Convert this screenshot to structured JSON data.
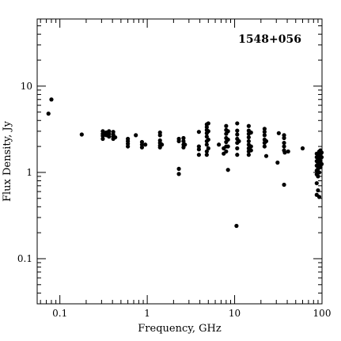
{
  "chart_data": {
    "type": "scatter",
    "title": "1548+056",
    "xlabel": "Frequency, GHz",
    "ylabel": "Flux Density, Jy",
    "xscale": "log",
    "yscale": "log",
    "xlim": [
      0.055,
      100
    ],
    "ylim": [
      0.03,
      60
    ],
    "x_ticks": [
      {
        "value": 0.1,
        "label": "0.1"
      },
      {
        "value": 1,
        "label": "1"
      },
      {
        "value": 10,
        "label": "10"
      },
      {
        "value": 100,
        "label": "100"
      }
    ],
    "y_ticks": [
      {
        "value": 0.1,
        "label": "0.1"
      },
      {
        "value": 1,
        "label": "1"
      },
      {
        "value": 10,
        "label": "10"
      }
    ],
    "grid": false,
    "marker_color": "#000000",
    "points": [
      {
        "x": 0.074,
        "y": 4.8
      },
      {
        "x": 0.08,
        "y": 7.0
      },
      {
        "x": 0.178,
        "y": 2.75
      },
      {
        "x": 0.31,
        "y": 2.45
      },
      {
        "x": 0.31,
        "y": 2.65
      },
      {
        "x": 0.31,
        "y": 2.8
      },
      {
        "x": 0.31,
        "y": 3.0
      },
      {
        "x": 0.34,
        "y": 2.7
      },
      {
        "x": 0.34,
        "y": 2.9
      },
      {
        "x": 0.365,
        "y": 2.6
      },
      {
        "x": 0.365,
        "y": 2.8
      },
      {
        "x": 0.365,
        "y": 3.0
      },
      {
        "x": 0.408,
        "y": 2.45
      },
      {
        "x": 0.408,
        "y": 2.6
      },
      {
        "x": 0.408,
        "y": 2.75
      },
      {
        "x": 0.408,
        "y": 2.95
      },
      {
        "x": 0.43,
        "y": 2.55
      },
      {
        "x": 0.6,
        "y": 2.0
      },
      {
        "x": 0.6,
        "y": 2.15
      },
      {
        "x": 0.6,
        "y": 2.3
      },
      {
        "x": 0.6,
        "y": 2.45
      },
      {
        "x": 0.74,
        "y": 2.7
      },
      {
        "x": 0.87,
        "y": 1.95
      },
      {
        "x": 0.87,
        "y": 2.1
      },
      {
        "x": 0.87,
        "y": 2.25
      },
      {
        "x": 0.95,
        "y": 2.1
      },
      {
        "x": 1.4,
        "y": 1.95
      },
      {
        "x": 1.4,
        "y": 2.05
      },
      {
        "x": 1.4,
        "y": 2.2
      },
      {
        "x": 1.4,
        "y": 2.35
      },
      {
        "x": 1.4,
        "y": 2.7
      },
      {
        "x": 1.4,
        "y": 2.9
      },
      {
        "x": 1.47,
        "y": 2.1
      },
      {
        "x": 2.3,
        "y": 0.96
      },
      {
        "x": 2.3,
        "y": 1.1
      },
      {
        "x": 2.3,
        "y": 2.3
      },
      {
        "x": 2.3,
        "y": 2.45
      },
      {
        "x": 2.6,
        "y": 1.95
      },
      {
        "x": 2.6,
        "y": 2.1
      },
      {
        "x": 2.6,
        "y": 2.3
      },
      {
        "x": 2.6,
        "y": 2.5
      },
      {
        "x": 2.7,
        "y": 2.1
      },
      {
        "x": 3.9,
        "y": 1.6
      },
      {
        "x": 3.9,
        "y": 1.85
      },
      {
        "x": 3.9,
        "y": 2.0
      },
      {
        "x": 3.9,
        "y": 2.95
      },
      {
        "x": 4.8,
        "y": 1.6
      },
      {
        "x": 4.8,
        "y": 1.75
      },
      {
        "x": 4.8,
        "y": 2.1
      },
      {
        "x": 4.8,
        "y": 2.3
      },
      {
        "x": 4.8,
        "y": 2.6
      },
      {
        "x": 4.8,
        "y": 2.85
      },
      {
        "x": 4.8,
        "y": 3.1
      },
      {
        "x": 4.8,
        "y": 3.35
      },
      {
        "x": 4.8,
        "y": 3.6
      },
      {
        "x": 5.0,
        "y": 1.9
      },
      {
        "x": 5.0,
        "y": 2.4
      },
      {
        "x": 5.0,
        "y": 3.0
      },
      {
        "x": 5.0,
        "y": 3.7
      },
      {
        "x": 6.6,
        "y": 2.1
      },
      {
        "x": 7.5,
        "y": 1.65
      },
      {
        "x": 7.5,
        "y": 1.9
      },
      {
        "x": 8.0,
        "y": 1.75
      },
      {
        "x": 8.0,
        "y": 2.0
      },
      {
        "x": 8.0,
        "y": 2.25
      },
      {
        "x": 8.0,
        "y": 2.5
      },
      {
        "x": 8.0,
        "y": 2.8
      },
      {
        "x": 8.0,
        "y": 3.1
      },
      {
        "x": 8.0,
        "y": 3.45
      },
      {
        "x": 8.4,
        "y": 1.07
      },
      {
        "x": 8.4,
        "y": 2.0
      },
      {
        "x": 8.4,
        "y": 2.4
      },
      {
        "x": 8.4,
        "y": 3.0
      },
      {
        "x": 10.5,
        "y": 0.24
      },
      {
        "x": 10.7,
        "y": 1.6
      },
      {
        "x": 10.7,
        "y": 1.9
      },
      {
        "x": 10.7,
        "y": 2.2
      },
      {
        "x": 10.7,
        "y": 2.45
      },
      {
        "x": 10.7,
        "y": 2.75
      },
      {
        "x": 10.7,
        "y": 3.05
      },
      {
        "x": 10.7,
        "y": 3.7
      },
      {
        "x": 11.2,
        "y": 2.3
      },
      {
        "x": 14.5,
        "y": 1.6
      },
      {
        "x": 14.5,
        "y": 1.75
      },
      {
        "x": 14.5,
        "y": 1.9
      },
      {
        "x": 14.5,
        "y": 2.1
      },
      {
        "x": 14.5,
        "y": 2.3
      },
      {
        "x": 14.5,
        "y": 2.55
      },
      {
        "x": 14.5,
        "y": 2.8
      },
      {
        "x": 14.5,
        "y": 3.05
      },
      {
        "x": 14.5,
        "y": 3.45
      },
      {
        "x": 15.4,
        "y": 1.8
      },
      {
        "x": 15.4,
        "y": 2.0
      },
      {
        "x": 15.4,
        "y": 2.9
      },
      {
        "x": 22,
        "y": 2.0
      },
      {
        "x": 22,
        "y": 2.2
      },
      {
        "x": 22,
        "y": 2.4
      },
      {
        "x": 22,
        "y": 2.7
      },
      {
        "x": 22,
        "y": 2.95
      },
      {
        "x": 22,
        "y": 3.2
      },
      {
        "x": 23,
        "y": 1.55
      },
      {
        "x": 23,
        "y": 2.3
      },
      {
        "x": 31,
        "y": 1.3
      },
      {
        "x": 32,
        "y": 2.85
      },
      {
        "x": 36.8,
        "y": 0.72
      },
      {
        "x": 36.8,
        "y": 1.8
      },
      {
        "x": 36.8,
        "y": 2.0
      },
      {
        "x": 36.8,
        "y": 2.2
      },
      {
        "x": 36.8,
        "y": 2.5
      },
      {
        "x": 36.8,
        "y": 2.7
      },
      {
        "x": 37.5,
        "y": 1.7
      },
      {
        "x": 41,
        "y": 1.75
      },
      {
        "x": 60,
        "y": 1.9
      },
      {
        "x": 87,
        "y": 0.55
      },
      {
        "x": 87,
        "y": 0.75
      },
      {
        "x": 87,
        "y": 0.95
      },
      {
        "x": 87,
        "y": 1.05
      },
      {
        "x": 87,
        "y": 1.2
      },
      {
        "x": 87,
        "y": 1.35
      },
      {
        "x": 87,
        "y": 1.5
      },
      {
        "x": 87,
        "y": 1.65
      },
      {
        "x": 90,
        "y": 0.62
      },
      {
        "x": 90,
        "y": 0.9
      },
      {
        "x": 90,
        "y": 1.1
      },
      {
        "x": 90,
        "y": 1.3
      },
      {
        "x": 90,
        "y": 1.45
      },
      {
        "x": 90,
        "y": 1.6
      },
      {
        "x": 93,
        "y": 0.52
      },
      {
        "x": 93,
        "y": 1.0
      },
      {
        "x": 93,
        "y": 1.2
      },
      {
        "x": 93,
        "y": 1.4
      },
      {
        "x": 93,
        "y": 1.55
      },
      {
        "x": 93,
        "y": 1.75
      },
      {
        "x": 96,
        "y": 1.15
      },
      {
        "x": 96,
        "y": 1.35
      },
      {
        "x": 96,
        "y": 1.6
      },
      {
        "x": 96,
        "y": 1.8
      },
      {
        "x": 99,
        "y": 1.25
      },
      {
        "x": 99,
        "y": 1.5
      },
      {
        "x": 99,
        "y": 1.7
      }
    ]
  }
}
